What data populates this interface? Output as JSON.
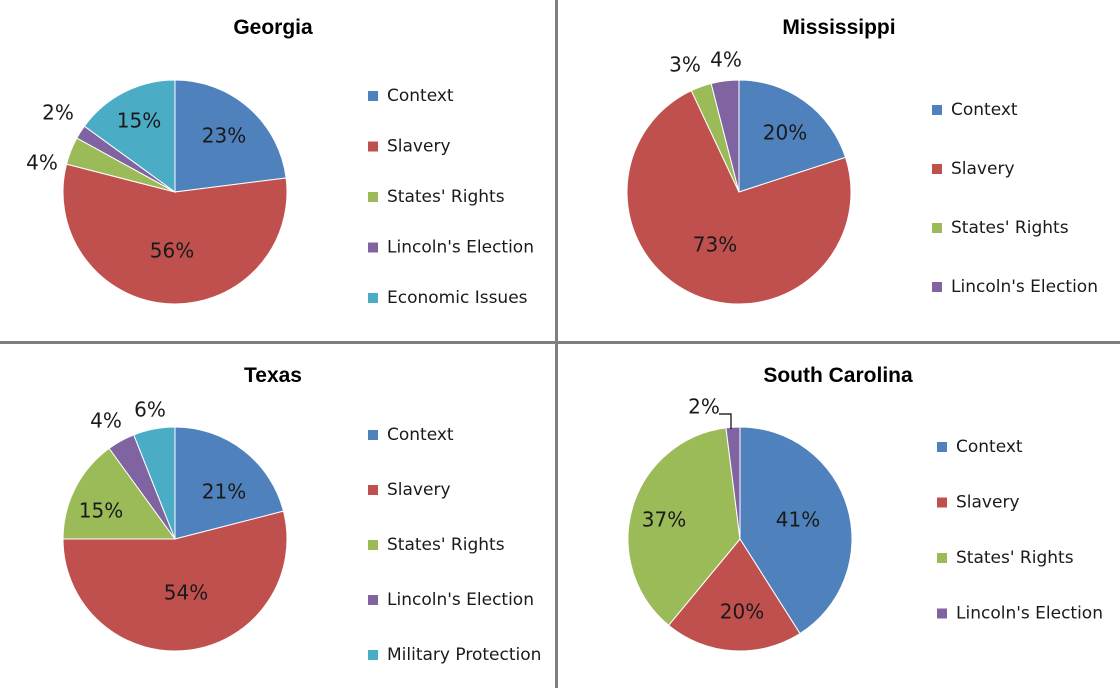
{
  "colors": {
    "Context": "#4F81BD",
    "Slavery": "#C0504D",
    "States' Rights": "#9BBB59",
    "Lincoln's Election": "#8064A2",
    "Economic Issues": "#4BACC6",
    "Military Protection": "#4BACC6"
  },
  "chart_data": [
    {
      "type": "pie",
      "title": "Georgia",
      "categories": [
        "Context",
        "Slavery",
        "States' Rights",
        "Lincoln's Election",
        "Economic Issues"
      ],
      "values": [
        23,
        56,
        4,
        2,
        15
      ],
      "labels": [
        "23%",
        "56%",
        "4%",
        "2%",
        "15%"
      ],
      "legend": "right"
    },
    {
      "type": "pie",
      "title": "Mississippi",
      "categories": [
        "Context",
        "Slavery",
        "States' Rights",
        "Lincoln's Election"
      ],
      "values": [
        20,
        73,
        3,
        4
      ],
      "labels": [
        "20%",
        "73%",
        "3%",
        "4%"
      ],
      "legend": "right"
    },
    {
      "type": "pie",
      "title": "Texas",
      "categories": [
        "Context",
        "Slavery",
        "States' Rights",
        "Lincoln's Election",
        "Military Protection"
      ],
      "values": [
        21,
        54,
        15,
        4,
        6
      ],
      "labels": [
        "21%",
        "54%",
        "15%",
        "4%",
        "6%"
      ],
      "legend": "right"
    },
    {
      "type": "pie",
      "title": "South Carolina",
      "categories": [
        "Context",
        "Slavery",
        "States' Rights",
        "Lincoln's Election"
      ],
      "values": [
        41,
        20,
        37,
        2
      ],
      "labels": [
        "41%",
        "20%",
        "37%",
        "2%"
      ],
      "legend": "right"
    }
  ]
}
